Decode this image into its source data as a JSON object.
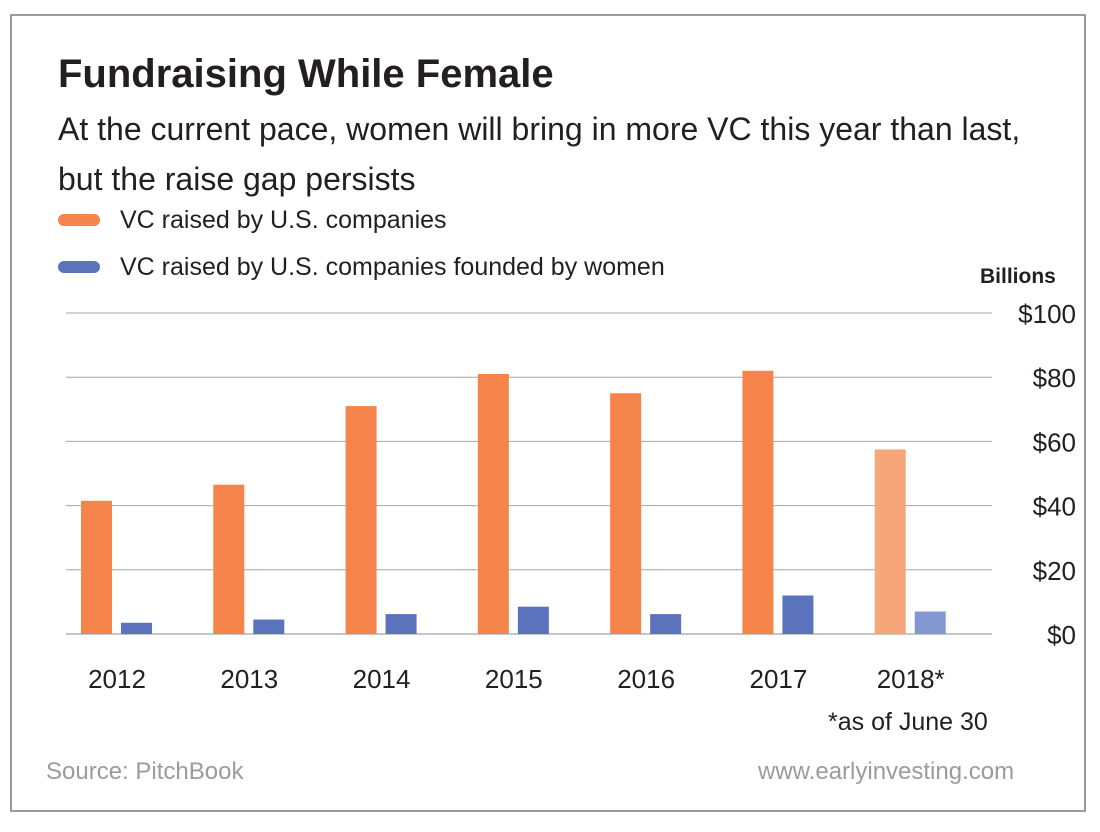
{
  "chart_data": {
    "type": "bar",
    "title": "Fundraising While Female",
    "subtitle": "At the current pace, women will bring in more VC this year than last, but the raise gap persists",
    "ylabel": "Billions",
    "categories": [
      "2012",
      "2013",
      "2014",
      "2015",
      "2016",
      "2017",
      "2018*"
    ],
    "series": [
      {
        "name": "VC raised by U.S. companies",
        "color": "#f5844a",
        "values": [
          41.5,
          46.5,
          71,
          81,
          75,
          82,
          57.5
        ]
      },
      {
        "name": "VC raised by U.S. companies founded by women",
        "color": "#5b72bd",
        "values": [
          3.5,
          4.5,
          6.2,
          8.5,
          6.2,
          12,
          7
        ]
      }
    ],
    "highlight_last_category_faded": true,
    "faded_colors": [
      "#f6a678",
      "#8398d0"
    ],
    "ylim": [
      0,
      100
    ],
    "yticks": [
      0,
      20,
      40,
      60,
      80,
      100
    ],
    "ytick_labels": [
      "$0",
      "$20",
      "$40",
      "$60",
      "$80",
      "$100"
    ],
    "yaxis_side": "right",
    "grid": true,
    "legend_position": "top-left",
    "footnote": "*as of June 30",
    "source": "Source: PitchBook",
    "website": "www.earlyinvesting.com"
  }
}
